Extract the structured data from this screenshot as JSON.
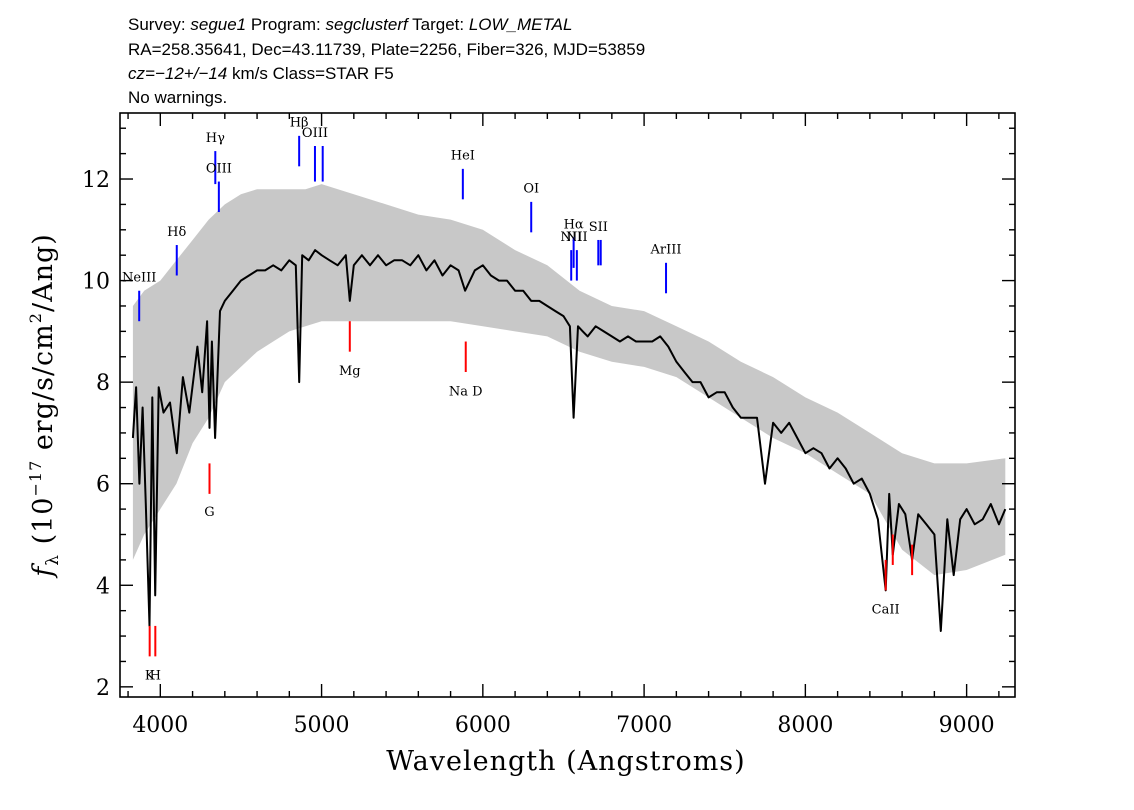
{
  "header": {
    "line1": {
      "survey_label": "Survey: ",
      "survey": "segue1",
      "program_label": " Program: ",
      "program": "segclusterf",
      "target_label": " Target: ",
      "target": "LOW_METAL"
    },
    "line2": "RA=258.35641, Dec=43.11739, Plate=2256, Fiber=326, MJD=53859",
    "line3": {
      "cz": "cz=",
      "value": "−12+/−14",
      "rest": " km/s Class=STAR F5"
    },
    "line4": "No warnings."
  },
  "chart_data": {
    "type": "line",
    "xlabel": "Wavelength (Angstroms)",
    "ylabel": {
      "f": "f",
      "sub": "λ",
      "open": " (10",
      "exp": "−17",
      "mid": " erg/s/cm",
      "exp2": "2",
      "close": "/Ang)"
    },
    "xlim": [
      3750,
      9300
    ],
    "ylim": [
      1.8,
      13.3
    ],
    "xticks": [
      4000,
      5000,
      6000,
      7000,
      8000,
      9000
    ],
    "yticks": [
      2,
      4,
      6,
      8,
      10,
      12
    ],
    "grid": false,
    "colors": {
      "flux": "#000000",
      "error_band": "#c8c8c8",
      "emission": "#0000ff",
      "absorption": "#ff0000"
    },
    "series": [
      {
        "role": "flux",
        "x": [
          3830,
          3850,
          3870,
          3890,
          3910,
          3933,
          3950,
          3968,
          3990,
          4020,
          4060,
          4102,
          4140,
          4180,
          4230,
          4260,
          4290,
          4305,
          4320,
          4340,
          4370,
          4400,
          4450,
          4500,
          4550,
          4600,
          4650,
          4700,
          4750,
          4800,
          4840,
          4861,
          4880,
          4920,
          4960,
          5000,
          5050,
          5100,
          5150,
          5175,
          5200,
          5250,
          5300,
          5350,
          5400,
          5450,
          5500,
          5550,
          5600,
          5650,
          5700,
          5750,
          5800,
          5850,
          5890,
          5950,
          6000,
          6050,
          6100,
          6150,
          6200,
          6250,
          6300,
          6350,
          6400,
          6450,
          6500,
          6540,
          6563,
          6590,
          6620,
          6650,
          6700,
          6750,
          6800,
          6850,
          6900,
          6950,
          7000,
          7050,
          7100,
          7150,
          7200,
          7250,
          7300,
          7350,
          7400,
          7450,
          7500,
          7550,
          7600,
          7650,
          7700,
          7750,
          7800,
          7850,
          7900,
          7950,
          8000,
          8050,
          8100,
          8150,
          8200,
          8250,
          8300,
          8350,
          8400,
          8450,
          8498,
          8520,
          8542,
          8580,
          8620,
          8662,
          8700,
          8750,
          8800,
          8840,
          8880,
          8920,
          8960,
          9000,
          9050,
          9100,
          9150,
          9200,
          9240
        ],
        "y": [
          6.9,
          7.9,
          6.0,
          7.5,
          5.6,
          3.2,
          7.7,
          3.8,
          7.9,
          7.4,
          7.6,
          6.6,
          8.1,
          7.4,
          8.7,
          7.8,
          9.2,
          7.1,
          8.8,
          6.9,
          9.4,
          9.6,
          9.8,
          10.0,
          10.1,
          10.2,
          10.2,
          10.3,
          10.2,
          10.4,
          10.3,
          8.0,
          10.5,
          10.4,
          10.6,
          10.5,
          10.4,
          10.3,
          10.5,
          9.6,
          10.3,
          10.5,
          10.3,
          10.5,
          10.3,
          10.4,
          10.4,
          10.3,
          10.5,
          10.2,
          10.4,
          10.1,
          10.3,
          10.2,
          9.8,
          10.2,
          10.3,
          10.1,
          10.0,
          10.0,
          9.8,
          9.8,
          9.6,
          9.6,
          9.5,
          9.4,
          9.3,
          9.1,
          7.3,
          9.1,
          9.0,
          8.9,
          9.1,
          9.0,
          8.9,
          8.8,
          8.9,
          8.8,
          8.8,
          8.8,
          8.9,
          8.7,
          8.4,
          8.2,
          8.0,
          8.0,
          7.7,
          7.8,
          7.8,
          7.5,
          7.3,
          7.3,
          7.3,
          6.0,
          7.2,
          7.0,
          7.2,
          6.9,
          6.6,
          6.7,
          6.6,
          6.3,
          6.5,
          6.3,
          6.0,
          6.1,
          5.8,
          5.3,
          3.9,
          5.8,
          4.6,
          5.6,
          5.4,
          4.5,
          5.4,
          5.2,
          5.0,
          3.1,
          5.3,
          4.2,
          5.3,
          5.5,
          5.2,
          5.3,
          5.6,
          5.2,
          5.5
        ]
      },
      {
        "role": "error_band_upper",
        "x": [
          3830,
          3900,
          4000,
          4100,
          4200,
          4300,
          4400,
          4500,
          4600,
          4700,
          4800,
          4900,
          5000,
          5200,
          5400,
          5600,
          5800,
          6000,
          6200,
          6400,
          6600,
          6800,
          7000,
          7200,
          7400,
          7600,
          7800,
          8000,
          8200,
          8400,
          8600,
          8800,
          9000,
          9240
        ],
        "y": [
          9.5,
          9.8,
          10.0,
          10.4,
          10.8,
          11.2,
          11.5,
          11.7,
          11.8,
          11.8,
          11.8,
          11.8,
          11.9,
          11.7,
          11.5,
          11.3,
          11.2,
          11.0,
          10.6,
          10.3,
          9.8,
          9.5,
          9.4,
          9.1,
          8.8,
          8.4,
          8.1,
          7.7,
          7.4,
          7.0,
          6.6,
          6.4,
          6.4,
          6.5
        ]
      },
      {
        "role": "error_band_lower",
        "x": [
          3830,
          3900,
          4000,
          4100,
          4200,
          4300,
          4400,
          4500,
          4600,
          4700,
          4800,
          4900,
          5000,
          5200,
          5400,
          5600,
          5800,
          6000,
          6200,
          6400,
          6600,
          6800,
          7000,
          7200,
          7400,
          7600,
          7800,
          8000,
          8200,
          8400,
          8600,
          8800,
          9000,
          9240
        ],
        "y": [
          4.5,
          5.0,
          5.5,
          6.0,
          6.8,
          7.3,
          8.0,
          8.3,
          8.6,
          8.8,
          9.0,
          9.1,
          9.2,
          9.2,
          9.2,
          9.2,
          9.2,
          9.1,
          9.0,
          8.9,
          8.6,
          8.4,
          8.3,
          8.1,
          7.7,
          7.3,
          6.9,
          6.6,
          6.2,
          5.8,
          4.7,
          4.2,
          4.3,
          4.6
        ]
      }
    ],
    "emission_lines": [
      {
        "label": "NeIII",
        "x": 3869,
        "y0": 9.2,
        "y1": 9.8,
        "label_y": 9.98
      },
      {
        "label": "Hδ",
        "x": 4102,
        "y0": 10.1,
        "y1": 10.7,
        "label_y": 10.88
      },
      {
        "label": "Hγ",
        "x": 4341,
        "y0": 11.9,
        "y1": 12.55,
        "label_y": 12.73
      },
      {
        "label": "OIII",
        "x": 4363,
        "y0": 11.35,
        "y1": 11.95,
        "label_y": 12.13
      },
      {
        "label": "Hβ",
        "x": 4861,
        "y0": 12.25,
        "y1": 12.85,
        "label_y": 13.03
      },
      {
        "label": "OIII",
        "x": 4959,
        "y0": 11.95,
        "y1": 12.65,
        "label_y": 12.83
      },
      {
        "label": "OIII",
        "x": 5007,
        "y0": 11.95,
        "y1": 12.65
      },
      {
        "label": "HeI",
        "x": 5876,
        "y0": 11.6,
        "y1": 12.2,
        "label_y": 12.38
      },
      {
        "label": "OI",
        "x": 6300,
        "y0": 10.95,
        "y1": 11.55,
        "label_y": 11.73
      },
      {
        "label": "NII",
        "x": 6548,
        "y0": 10.0,
        "y1": 10.6,
        "label_y": 10.78
      },
      {
        "label": "Hα",
        "x": 6563,
        "y0": 10.25,
        "y1": 10.85,
        "label_y": 11.03
      },
      {
        "label": "NII",
        "x": 6583,
        "y0": 10.0,
        "y1": 10.6,
        "label_y": 10.78
      },
      {
        "label": "SII",
        "x": 6716,
        "y0": 10.3,
        "y1": 10.8,
        "label_y": 10.98
      },
      {
        "label": "SII",
        "x": 6731,
        "y0": 10.3,
        "y1": 10.8
      },
      {
        "label": "ArIII",
        "x": 7136,
        "y0": 9.75,
        "y1": 10.35,
        "label_y": 10.53
      }
    ],
    "absorption_lines": [
      {
        "label": "K",
        "x": 3934,
        "y0": 2.6,
        "y1": 3.2,
        "label_y": 2.14
      },
      {
        "label": "H",
        "x": 3969,
        "y0": 2.6,
        "y1": 3.2,
        "label_y": 2.14
      },
      {
        "label": "G",
        "x": 4305,
        "y0": 5.8,
        "y1": 6.4,
        "label_y": 5.36
      },
      {
        "label": "Mg",
        "x": 5175,
        "y0": 8.6,
        "y1": 9.2,
        "label_y": 8.14
      },
      {
        "label": "Na D",
        "x": 5894,
        "y0": 8.2,
        "y1": 8.8,
        "label_y": 7.74
      },
      {
        "label": "CaII",
        "x": 8498,
        "y0": 3.9,
        "y1": 4.5,
        "label_y": 3.44
      },
      {
        "label": "CaII",
        "x": 8542,
        "y0": 4.4,
        "y1": 5.0
      },
      {
        "label": "CaII",
        "x": 8662,
        "y0": 4.2,
        "y1": 4.8
      }
    ]
  }
}
